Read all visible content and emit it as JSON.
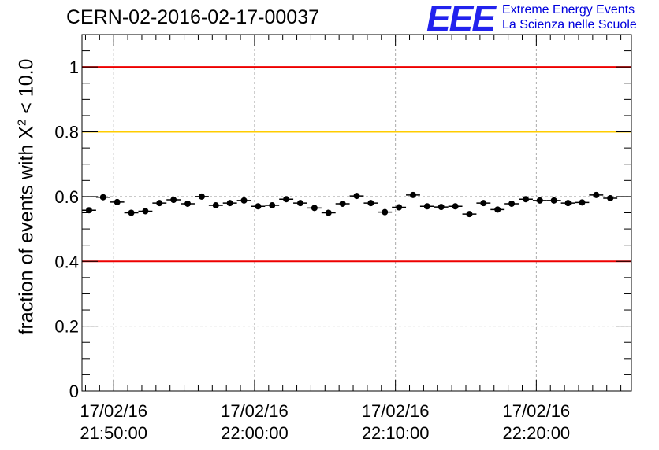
{
  "title": "CERN-02-2016-02-17-00037",
  "logo": {
    "mark": "EEE",
    "line1": "Extreme Energy Events",
    "line2": "La Scienza nelle Scuole"
  },
  "chart_data": {
    "type": "scatter",
    "title": "CERN-02-2016-02-17-00037",
    "ylabel_pre": "fraction of events with ",
    "ylabel_sym": "X",
    "ylabel_sup": "2",
    "ylabel_post": " < 10.0",
    "xlabel": "",
    "x_range": [
      "2016-02-17 21:47:45",
      "2016-02-17 22:26:45"
    ],
    "ylim": [
      0,
      1.1
    ],
    "y_ticks": [
      0,
      0.2,
      0.4,
      0.6,
      0.8,
      1
    ],
    "y_tick_labels": [
      "0",
      "0.2",
      "0.4",
      "0.6",
      "0.8",
      "1"
    ],
    "x_tick_times": [
      "2016-02-17 21:50:00",
      "2016-02-17 22:00:00",
      "2016-02-17 22:10:00",
      "2016-02-17 22:20:00"
    ],
    "x_tick_labels": [
      [
        "17/02/16",
        "21:50:00"
      ],
      [
        "17/02/16",
        "22:00:00"
      ],
      [
        "17/02/16",
        "22:10:00"
      ],
      [
        "17/02/16",
        "22:20:00"
      ]
    ],
    "bin_width_seconds": 60,
    "grid": true,
    "reference_lines": [
      {
        "y": 1.0,
        "color": "#ee0000"
      },
      {
        "y": 0.8,
        "color": "#ffcc00"
      },
      {
        "y": 0.4,
        "color": "#ee0000"
      }
    ],
    "points": [
      {
        "x": "2016-02-17 21:48:15",
        "y": 0.558
      },
      {
        "x": "2016-02-17 21:49:15",
        "y": 0.598
      },
      {
        "x": "2016-02-17 21:50:15",
        "y": 0.583
      },
      {
        "x": "2016-02-17 21:51:15",
        "y": 0.55
      },
      {
        "x": "2016-02-17 21:52:15",
        "y": 0.555
      },
      {
        "x": "2016-02-17 21:53:15",
        "y": 0.58
      },
      {
        "x": "2016-02-17 21:54:15",
        "y": 0.59
      },
      {
        "x": "2016-02-17 21:55:15",
        "y": 0.578
      },
      {
        "x": "2016-02-17 21:56:15",
        "y": 0.6
      },
      {
        "x": "2016-02-17 21:57:15",
        "y": 0.573
      },
      {
        "x": "2016-02-17 21:58:15",
        "y": 0.58
      },
      {
        "x": "2016-02-17 21:59:15",
        "y": 0.588
      },
      {
        "x": "2016-02-17 22:00:15",
        "y": 0.57
      },
      {
        "x": "2016-02-17 22:01:15",
        "y": 0.573
      },
      {
        "x": "2016-02-17 22:02:15",
        "y": 0.592
      },
      {
        "x": "2016-02-17 22:03:15",
        "y": 0.58
      },
      {
        "x": "2016-02-17 22:04:15",
        "y": 0.565
      },
      {
        "x": "2016-02-17 22:05:15",
        "y": 0.55
      },
      {
        "x": "2016-02-17 22:06:15",
        "y": 0.578
      },
      {
        "x": "2016-02-17 22:07:15",
        "y": 0.602
      },
      {
        "x": "2016-02-17 22:08:15",
        "y": 0.58
      },
      {
        "x": "2016-02-17 22:09:15",
        "y": 0.552
      },
      {
        "x": "2016-02-17 22:10:15",
        "y": 0.567
      },
      {
        "x": "2016-02-17 22:11:15",
        "y": 0.605
      },
      {
        "x": "2016-02-17 22:12:15",
        "y": 0.57
      },
      {
        "x": "2016-02-17 22:13:15",
        "y": 0.568
      },
      {
        "x": "2016-02-17 22:14:15",
        "y": 0.57
      },
      {
        "x": "2016-02-17 22:15:15",
        "y": 0.546
      },
      {
        "x": "2016-02-17 22:16:15",
        "y": 0.58
      },
      {
        "x": "2016-02-17 22:17:15",
        "y": 0.56
      },
      {
        "x": "2016-02-17 22:18:15",
        "y": 0.578
      },
      {
        "x": "2016-02-17 22:19:15",
        "y": 0.592
      },
      {
        "x": "2016-02-17 22:20:15",
        "y": 0.588
      },
      {
        "x": "2016-02-17 22:21:15",
        "y": 0.588
      },
      {
        "x": "2016-02-17 22:22:15",
        "y": 0.58
      },
      {
        "x": "2016-02-17 22:23:15",
        "y": 0.582
      },
      {
        "x": "2016-02-17 22:24:15",
        "y": 0.605
      },
      {
        "x": "2016-02-17 22:25:15",
        "y": 0.595
      }
    ],
    "y_error": 0.009
  }
}
